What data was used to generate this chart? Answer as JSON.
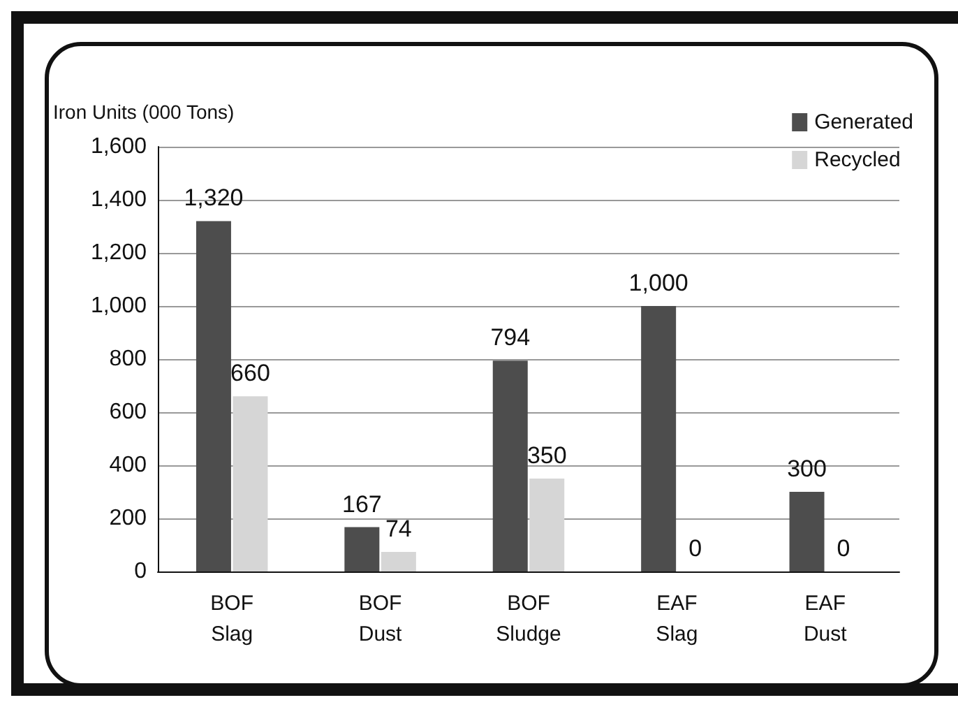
{
  "chart_data": {
    "type": "bar",
    "ylabel": "Iron Units (000 Tons)",
    "categories": [
      "BOF\nSlag",
      "BOF\nDust",
      "BOF\nSludge",
      "EAF\nSlag",
      "EAF\nDust"
    ],
    "series": [
      {
        "name": "Generated",
        "color": "#4d4d4d",
        "values": [
          1320,
          167,
          794,
          1000,
          300
        ],
        "value_labels": [
          "1,320",
          "167",
          "794",
          "1,000",
          "300"
        ]
      },
      {
        "name": "Recycled",
        "color": "#d6d6d6",
        "values": [
          660,
          74,
          350,
          0,
          0
        ],
        "value_labels": [
          "660",
          "74",
          "350",
          "0",
          "0"
        ]
      }
    ],
    "ylim": [
      0,
      1600
    ],
    "yticks": [
      0,
      200,
      400,
      600,
      800,
      {
        "value": 1000,
        "label": "1,000"
      },
      {
        "value": 1200,
        "label": "1,200"
      },
      {
        "value": 1400,
        "label": "1,400"
      },
      {
        "value": 1600,
        "label": "1,600"
      }
    ],
    "grid": "y",
    "legend": "top right"
  }
}
